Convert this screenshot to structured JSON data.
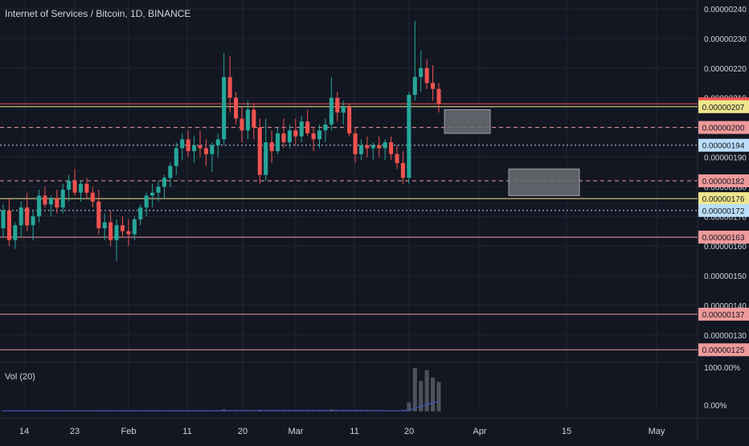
{
  "title": "Internet of Services / Bitcoin, 1D, BINANCE",
  "volume_indicator": {
    "label": "Vol (20)",
    "ticks": [
      "1000.00%",
      "0.00%"
    ]
  },
  "colors": {
    "background": "#131722",
    "up": "#26a69a",
    "down": "#ef5350",
    "grid": "#1f2433",
    "axis_text": "#d1d4dc",
    "volume_ma": "#3f51b5"
  },
  "chart_data": {
    "type": "candlestick",
    "title": "Internet of Services / Bitcoin, 1D, BINANCE",
    "interval": "1D",
    "exchange": "BINANCE",
    "ylim": [
      1.21e-06,
      2.43e-06
    ],
    "y_ticks": [
      "0.00000240",
      "0.00000230",
      "0.00000220",
      "0.00000210",
      "0.00000200",
      "0.00000190",
      "0.00000180",
      "0.00000170",
      "0.00000160",
      "0.00000150",
      "0.00000140",
      "0.00000130"
    ],
    "x_ticks": [
      "14",
      "23",
      "Feb",
      "11",
      "20",
      "Mar",
      "11",
      "20",
      "Apr",
      "15",
      "May"
    ],
    "candles": [
      [
        1.66,
        1.74,
        1.63,
        1.72
      ],
      [
        1.72,
        1.76,
        1.6,
        1.62
      ],
      [
        1.62,
        1.68,
        1.59,
        1.67
      ],
      [
        1.67,
        1.75,
        1.63,
        1.73
      ],
      [
        1.73,
        1.78,
        1.65,
        1.67
      ],
      [
        1.67,
        1.72,
        1.62,
        1.7
      ],
      [
        1.7,
        1.79,
        1.68,
        1.77
      ],
      [
        1.77,
        1.8,
        1.73,
        1.74
      ],
      [
        1.74,
        1.77,
        1.7,
        1.76
      ],
      [
        1.76,
        1.79,
        1.71,
        1.73
      ],
      [
        1.73,
        1.81,
        1.71,
        1.79
      ],
      [
        1.79,
        1.84,
        1.75,
        1.82
      ],
      [
        1.82,
        1.86,
        1.77,
        1.78
      ],
      [
        1.78,
        1.82,
        1.75,
        1.81
      ],
      [
        1.81,
        1.83,
        1.76,
        1.78
      ],
      [
        1.78,
        1.8,
        1.73,
        1.75
      ],
      [
        1.75,
        1.79,
        1.64,
        1.66
      ],
      [
        1.66,
        1.71,
        1.62,
        1.68
      ],
      [
        1.68,
        1.72,
        1.6,
        1.62
      ],
      [
        1.62,
        1.69,
        1.55,
        1.67
      ],
      [
        1.67,
        1.7,
        1.63,
        1.65
      ],
      [
        1.65,
        1.69,
        1.6,
        1.64
      ],
      [
        1.64,
        1.7,
        1.62,
        1.69
      ],
      [
        1.69,
        1.74,
        1.67,
        1.73
      ],
      [
        1.73,
        1.78,
        1.7,
        1.77
      ],
      [
        1.77,
        1.81,
        1.73,
        1.78
      ],
      [
        1.78,
        1.82,
        1.75,
        1.8
      ],
      [
        1.8,
        1.84,
        1.76,
        1.83
      ],
      [
        1.83,
        1.88,
        1.8,
        1.87
      ],
      [
        1.87,
        1.95,
        1.84,
        1.93
      ],
      [
        1.93,
        1.98,
        1.89,
        1.96
      ],
      [
        1.96,
        1.99,
        1.9,
        1.92
      ],
      [
        1.92,
        1.97,
        1.88,
        1.94
      ],
      [
        1.94,
        1.99,
        1.9,
        1.93
      ],
      [
        1.93,
        1.96,
        1.87,
        1.91
      ],
      [
        1.91,
        1.95,
        1.85,
        1.94
      ],
      [
        1.94,
        1.98,
        1.9,
        1.96
      ],
      [
        1.96,
        2.25,
        1.94,
        2.17
      ],
      [
        2.17,
        2.24,
        2.05,
        2.1
      ],
      [
        2.1,
        2.12,
        2.01,
        2.03
      ],
      [
        2.03,
        2.07,
        1.95,
        1.99
      ],
      [
        1.99,
        2.09,
        1.96,
        2.06
      ],
      [
        2.06,
        2.08,
        1.96,
        2.0
      ],
      [
        2.0,
        2.03,
        1.81,
        1.84
      ],
      [
        1.84,
        2.03,
        1.82,
        1.95
      ],
      [
        1.95,
        1.99,
        1.88,
        1.92
      ],
      [
        1.92,
        2.0,
        1.91,
        1.98
      ],
      [
        1.98,
        2.03,
        1.93,
        1.95
      ],
      [
        1.95,
        2.01,
        1.93,
        1.99
      ],
      [
        1.99,
        2.03,
        1.94,
        1.97
      ],
      [
        1.97,
        2.04,
        1.95,
        2.02
      ],
      [
        2.02,
        2.06,
        1.97,
        1.98
      ],
      [
        1.98,
        2.0,
        1.92,
        1.96
      ],
      [
        1.96,
        2.01,
        1.93,
        1.99
      ],
      [
        1.99,
        2.03,
        1.95,
        2.01
      ],
      [
        2.01,
        2.17,
        1.99,
        2.1
      ],
      [
        2.1,
        2.12,
        2.02,
        2.05
      ],
      [
        2.05,
        2.09,
        2.01,
        2.07
      ],
      [
        2.07,
        2.08,
        1.97,
        1.98
      ],
      [
        1.98,
        2.0,
        1.88,
        1.91
      ],
      [
        1.91,
        1.96,
        1.89,
        1.94
      ],
      [
        1.94,
        1.97,
        1.9,
        1.93
      ],
      [
        1.93,
        1.95,
        1.89,
        1.94
      ],
      [
        1.94,
        1.97,
        1.9,
        1.93
      ],
      [
        1.93,
        1.96,
        1.89,
        1.95
      ],
      [
        1.95,
        1.97,
        1.89,
        1.91
      ],
      [
        1.91,
        1.94,
        1.86,
        1.88
      ],
      [
        1.88,
        1.92,
        1.81,
        1.83
      ],
      [
        1.83,
        2.12,
        1.81,
        2.11
      ],
      [
        2.11,
        2.36,
        2.09,
        2.17
      ],
      [
        2.17,
        2.26,
        2.12,
        2.2
      ],
      [
        2.2,
        2.23,
        2.13,
        2.15
      ],
      [
        2.15,
        2.21,
        2.09,
        2.13
      ],
      [
        2.13,
        2.15,
        2.05,
        2.08
      ]
    ],
    "volume_percent": [
      15,
      12,
      18,
      10,
      14,
      12,
      20,
      16,
      14,
      12,
      18,
      22,
      16,
      14,
      12,
      14,
      26,
      18,
      16,
      20,
      14,
      12,
      16,
      18,
      20,
      18,
      16,
      14,
      18,
      16,
      14,
      12,
      14,
      16,
      18,
      14,
      16,
      48,
      30,
      28,
      22,
      24,
      20,
      36,
      26,
      18,
      16,
      14,
      16,
      14,
      18,
      16,
      14,
      12,
      14,
      44,
      22,
      18,
      20,
      26,
      16,
      14,
      12,
      14,
      16,
      14,
      18,
      30,
      210,
      1000,
      700,
      950,
      780,
      680
    ],
    "horizontal_levels": [
      {
        "label": "0.00000208",
        "color": "#ef5350"
      },
      {
        "label": "0.00000207",
        "color": "#f0e68c"
      },
      {
        "label": "0.00000200",
        "color": "#ef9a9a"
      },
      {
        "label": "0.00000194",
        "color": "#bbdefb"
      },
      {
        "label": "0.00000182",
        "color": "#ef9a9a"
      },
      {
        "label": "0.00000176",
        "color": "#f0e68c"
      },
      {
        "label": "0.00000172",
        "color": "#bbdefb"
      },
      {
        "label": "0.00000163",
        "color": "#ef9a9a"
      },
      {
        "label": "0.00000137",
        "color": "#ef9a9a"
      },
      {
        "label": "0.00000125",
        "color": "#ef9a9a"
      }
    ]
  }
}
